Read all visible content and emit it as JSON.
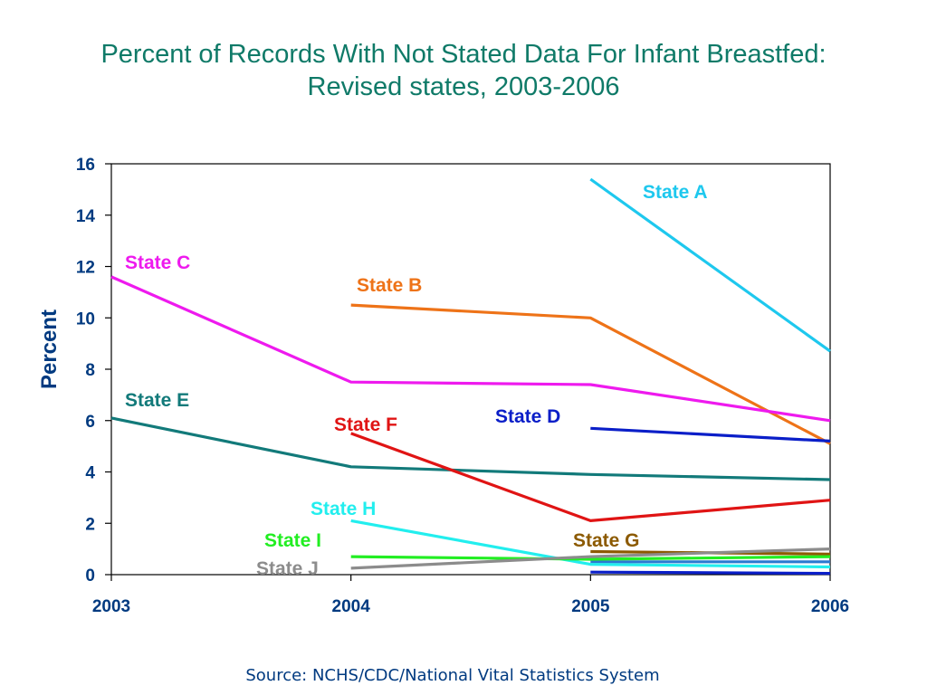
{
  "title_lines": [
    "Percent of Records With Not Stated Data For Infant Breastfed:",
    "Revised states, 2003-2006"
  ],
  "source": "Source: NCHS/CDC/National Vital Statistics System",
  "chart_data": {
    "type": "line",
    "title": "Percent of Records With Not Stated Data For Infant Breastfed: Revised states, 2003-2006",
    "xlabel": "",
    "ylabel": "Percent",
    "x": [
      "2003",
      "2004",
      "2005",
      "2006"
    ],
    "xlim": [
      2003,
      2006
    ],
    "ylim": [
      0,
      16
    ],
    "yticks": [
      0,
      2,
      4,
      6,
      8,
      10,
      12,
      14,
      16
    ],
    "grid": false,
    "legend": "inline-labels",
    "series": [
      {
        "name": "State A",
        "color": "#1ec8ee",
        "values": [
          null,
          null,
          15.4,
          8.7
        ]
      },
      {
        "name": "State B",
        "color": "#ee7318",
        "values": [
          null,
          10.5,
          10.0,
          5.1
        ]
      },
      {
        "name": "State C",
        "color": "#ee1aee",
        "values": [
          11.6,
          7.5,
          7.4,
          6.0
        ]
      },
      {
        "name": "State D",
        "color": "#0a1ec8",
        "values": [
          null,
          null,
          5.7,
          5.2
        ]
      },
      {
        "name": "State E",
        "color": "#127a7a",
        "values": [
          6.1,
          4.2,
          3.9,
          3.7
        ]
      },
      {
        "name": "State F",
        "color": "#e01414",
        "values": [
          null,
          5.5,
          2.1,
          2.9
        ]
      },
      {
        "name": "State G",
        "color": "#8c5a00",
        "values": [
          null,
          null,
          0.9,
          0.8
        ]
      },
      {
        "name": "State H",
        "color": "#22eeee",
        "values": [
          null,
          2.1,
          0.4,
          0.3
        ]
      },
      {
        "name": "State I",
        "color": "#22ee22",
        "values": [
          null,
          0.7,
          0.6,
          0.7
        ]
      },
      {
        "name": "State J",
        "color": "#8c8c8c",
        "values": [
          null,
          0.25,
          0.7,
          1.0
        ]
      }
    ],
    "extra_lines": [
      {
        "color": "#0a1ec8",
        "values": [
          null,
          null,
          0.1,
          0.05
        ]
      },
      {
        "color": "#2a7ad0",
        "values": [
          null,
          null,
          0.5,
          0.5
        ]
      }
    ]
  }
}
